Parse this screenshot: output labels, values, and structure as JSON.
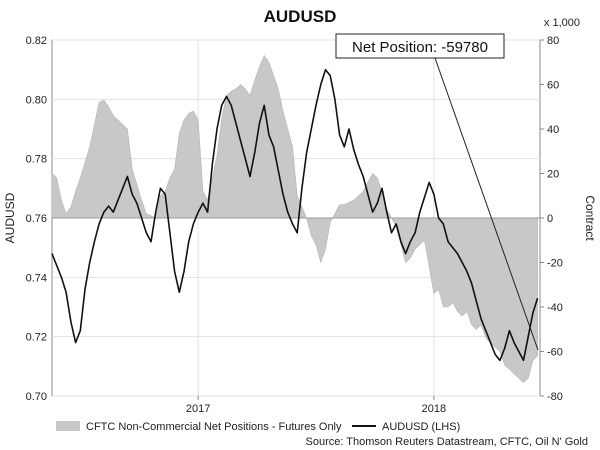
{
  "chart_data": {
    "type": "line",
    "title": "AUDUSD",
    "ylabel_left": "AUDUSD",
    "ylabel_right": "Contract",
    "right_axis_unit": "x 1,000",
    "ylim_left": [
      0.7,
      0.82
    ],
    "ylim_right": [
      -80,
      80
    ],
    "yticks_left": [
      "0.70",
      "0.72",
      "0.74",
      "0.76",
      "0.78",
      "0.80",
      "0.82"
    ],
    "yticks_right": [
      "-80",
      "-60",
      "-40",
      "-20",
      "0",
      "20",
      "40",
      "60",
      "80"
    ],
    "xlim": [
      2016.38,
      2018.45
    ],
    "xticks": [
      {
        "label": "2017",
        "x": 2017.0
      },
      {
        "label": "2018",
        "x": 2018.0
      }
    ],
    "callout": "Net Position: -59780",
    "legend": [
      "CFTC Non-Commercial Net Positions - Futures Only",
      "AUDUSD (LHS)"
    ],
    "source": "Source: Thomson Reuters Datastream, CFTC, Oil N' Gold",
    "grid": true,
    "series": [
      {
        "name": "CFTC Non-Commercial Net Positions - Futures Only",
        "axis": "right",
        "style": "area",
        "color": "#c8c8c8",
        "x": [
          2016.38,
          2016.4,
          2016.42,
          2016.44,
          2016.46,
          2016.48,
          2016.5,
          2016.52,
          2016.54,
          2016.56,
          2016.58,
          2016.6,
          2016.62,
          2016.64,
          2016.66,
          2016.68,
          2016.7,
          2016.72,
          2016.74,
          2016.76,
          2016.78,
          2016.8,
          2016.82,
          2016.84,
          2016.86,
          2016.88,
          2016.9,
          2016.92,
          2016.94,
          2016.96,
          2016.98,
          2017.0,
          2017.02,
          2017.04,
          2017.06,
          2017.08,
          2017.1,
          2017.12,
          2017.14,
          2017.16,
          2017.18,
          2017.2,
          2017.22,
          2017.24,
          2017.26,
          2017.28,
          2017.3,
          2017.32,
          2017.34,
          2017.36,
          2017.38,
          2017.4,
          2017.42,
          2017.44,
          2017.46,
          2017.48,
          2017.5,
          2017.52,
          2017.54,
          2017.56,
          2017.58,
          2017.6,
          2017.62,
          2017.64,
          2017.66,
          2017.68,
          2017.7,
          2017.72,
          2017.74,
          2017.76,
          2017.78,
          2017.8,
          2017.82,
          2017.84,
          2017.86,
          2017.88,
          2017.9,
          2017.92,
          2017.94,
          2017.96,
          2017.98,
          2018.0,
          2018.02,
          2018.04,
          2018.06,
          2018.08,
          2018.1,
          2018.12,
          2018.14,
          2018.16,
          2018.18,
          2018.2,
          2018.22,
          2018.24,
          2018.26,
          2018.28,
          2018.3,
          2018.32,
          2018.34,
          2018.36,
          2018.38,
          2018.4,
          2018.42,
          2018.44
        ],
        "values": [
          20,
          18,
          8,
          2,
          5,
          12,
          18,
          25,
          32,
          42,
          52,
          53,
          50,
          46,
          44,
          42,
          40,
          22,
          15,
          8,
          2,
          1,
          0,
          10,
          12,
          18,
          22,
          38,
          44,
          47,
          48,
          44,
          12,
          8,
          18,
          28,
          45,
          55,
          57,
          58,
          60,
          58,
          55,
          62,
          68,
          73,
          70,
          64,
          58,
          48,
          40,
          32,
          10,
          5,
          0,
          -8,
          -12,
          -20,
          -14,
          -2,
          2,
          6,
          6,
          7,
          8,
          10,
          12,
          16,
          20,
          18,
          12,
          4,
          0,
          -4,
          -12,
          -20,
          -18,
          -14,
          -12,
          -10,
          -22,
          -34,
          -32,
          -40,
          -40,
          -38,
          -42,
          -44,
          -42,
          -48,
          -50,
          -48,
          -54,
          -56,
          -58,
          -60,
          -66,
          -68,
          -70,
          -72,
          -74,
          -72,
          -64,
          -62
        ]
      },
      {
        "name": "AUDUSD (LHS)",
        "axis": "left",
        "style": "line",
        "color": "#111111",
        "x": [
          2016.38,
          2016.4,
          2016.42,
          2016.44,
          2016.46,
          2016.48,
          2016.5,
          2016.52,
          2016.54,
          2016.56,
          2016.58,
          2016.6,
          2016.62,
          2016.64,
          2016.66,
          2016.68,
          2016.7,
          2016.72,
          2016.74,
          2016.76,
          2016.78,
          2016.8,
          2016.82,
          2016.84,
          2016.86,
          2016.88,
          2016.9,
          2016.92,
          2016.94,
          2016.96,
          2016.98,
          2017.0,
          2017.02,
          2017.04,
          2017.06,
          2017.08,
          2017.1,
          2017.12,
          2017.14,
          2017.16,
          2017.18,
          2017.2,
          2017.22,
          2017.24,
          2017.26,
          2017.28,
          2017.3,
          2017.32,
          2017.34,
          2017.36,
          2017.38,
          2017.4,
          2017.42,
          2017.44,
          2017.46,
          2017.48,
          2017.5,
          2017.52,
          2017.54,
          2017.56,
          2017.58,
          2017.6,
          2017.62,
          2017.64,
          2017.66,
          2017.68,
          2017.7,
          2017.72,
          2017.74,
          2017.76,
          2017.78,
          2017.8,
          2017.82,
          2017.84,
          2017.86,
          2017.88,
          2017.9,
          2017.92,
          2017.94,
          2017.96,
          2017.98,
          2018.0,
          2018.02,
          2018.04,
          2018.06,
          2018.08,
          2018.1,
          2018.12,
          2018.14,
          2018.16,
          2018.18,
          2018.2,
          2018.22,
          2018.24,
          2018.26,
          2018.28,
          2018.3,
          2018.32,
          2018.34,
          2018.36,
          2018.38,
          2018.4,
          2018.42,
          2018.44
        ],
        "values": [
          0.748,
          0.744,
          0.74,
          0.735,
          0.725,
          0.718,
          0.722,
          0.736,
          0.745,
          0.752,
          0.758,
          0.762,
          0.764,
          0.762,
          0.766,
          0.77,
          0.774,
          0.768,
          0.765,
          0.76,
          0.755,
          0.752,
          0.762,
          0.77,
          0.768,
          0.755,
          0.742,
          0.735,
          0.742,
          0.752,
          0.758,
          0.762,
          0.765,
          0.762,
          0.778,
          0.79,
          0.798,
          0.801,
          0.798,
          0.792,
          0.786,
          0.78,
          0.774,
          0.782,
          0.792,
          0.798,
          0.788,
          0.784,
          0.776,
          0.768,
          0.762,
          0.758,
          0.755,
          0.77,
          0.782,
          0.79,
          0.798,
          0.805,
          0.81,
          0.808,
          0.8,
          0.788,
          0.784,
          0.79,
          0.783,
          0.778,
          0.774,
          0.768,
          0.762,
          0.765,
          0.77,
          0.762,
          0.755,
          0.758,
          0.752,
          0.748,
          0.752,
          0.755,
          0.762,
          0.767,
          0.772,
          0.768,
          0.76,
          0.758,
          0.752,
          0.75,
          0.748,
          0.745,
          0.742,
          0.738,
          0.732,
          0.726,
          0.722,
          0.718,
          0.714,
          0.712,
          0.716,
          0.722,
          0.718,
          0.715,
          0.712,
          0.72,
          0.728,
          0.733
        ]
      }
    ]
  }
}
